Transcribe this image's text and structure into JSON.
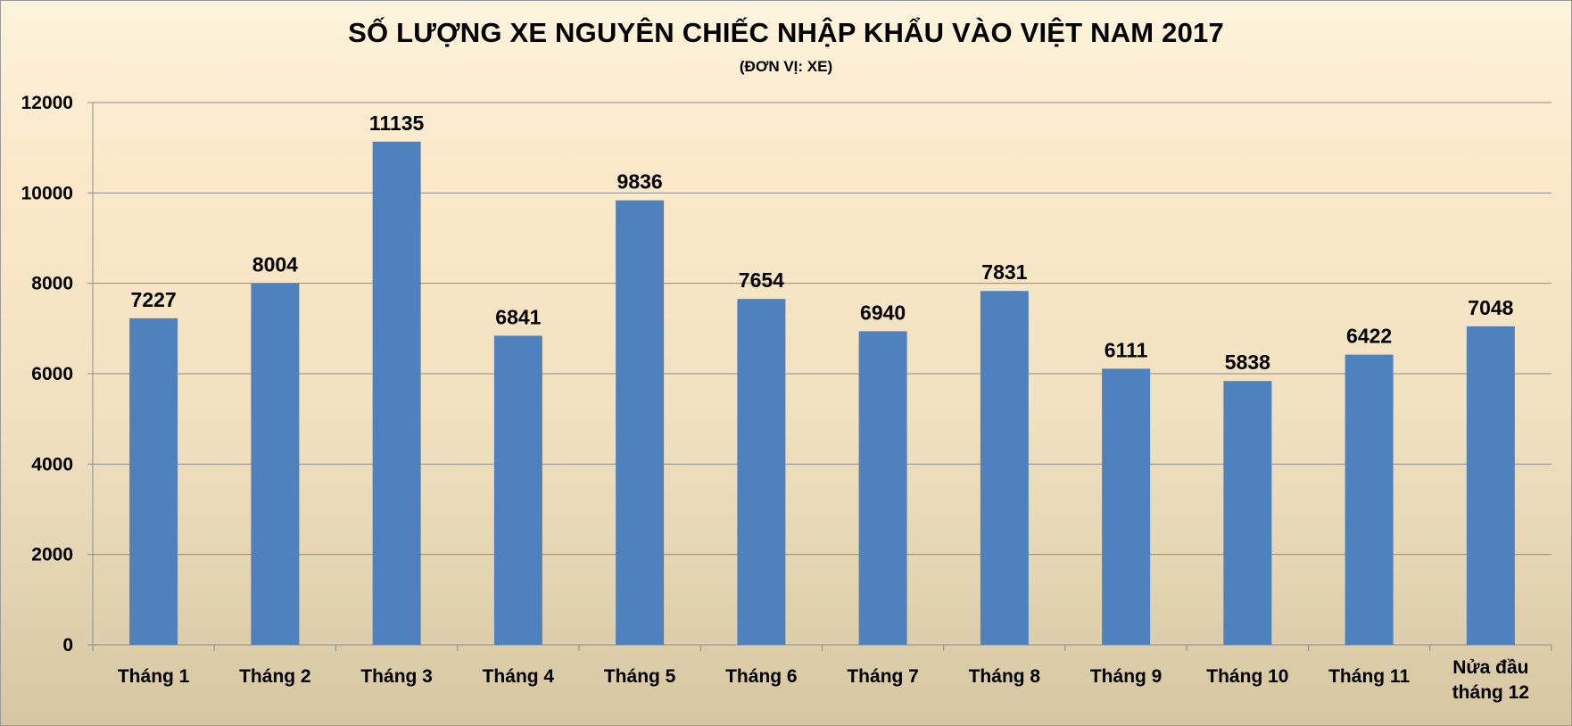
{
  "chart_data": {
    "type": "bar",
    "title": "SỐ LƯỢNG XE NGUYÊN CHIẾC NHẬP KHẨU VÀO VIỆT NAM 2017",
    "subtitle": "(ĐƠN VỊ: XE)",
    "categories": [
      "Tháng 1",
      "Tháng 2",
      "Tháng 3",
      "Tháng 4",
      "Tháng 5",
      "Tháng 6",
      "Tháng 7",
      "Tháng 8",
      "Tháng 9",
      "Tháng 10",
      "Tháng 11",
      "Nửa đầu tháng 12"
    ],
    "values": [
      7227,
      8004,
      11135,
      6841,
      9836,
      7654,
      6940,
      7831,
      6111,
      5838,
      6422,
      7048
    ],
    "data_labels": [
      "7227",
      "8004",
      "11135",
      "6841",
      "9836",
      "7654",
      "6940",
      "7831",
      "6111",
      "5838",
      "6422",
      "7048"
    ],
    "ylim": [
      0,
      12000
    ],
    "yticks": [
      0,
      2000,
      4000,
      6000,
      8000,
      10000,
      12000
    ],
    "ytick_labels": [
      "0",
      "2000",
      "4000",
      "6000",
      "8000",
      "10000",
      "12000"
    ],
    "grid": true,
    "legend": "none",
    "bar_color": "#4f81bd",
    "grid_color": "#8c8c8c"
  }
}
